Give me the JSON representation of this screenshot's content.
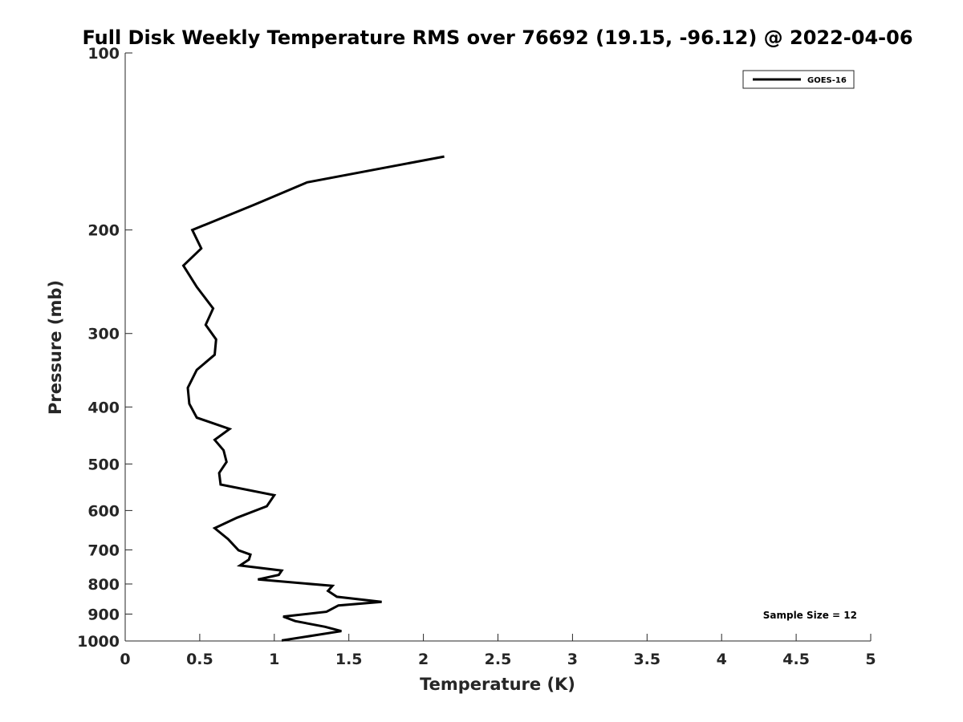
{
  "chart_data": {
    "type": "line",
    "title": "Full Disk Weekly Temperature RMS over 76692 (19.15, -96.12) @ 2022-04-06",
    "xlabel": "Temperature (K)",
    "ylabel": "Pressure (mb)",
    "xlim": [
      0,
      5
    ],
    "ylim": [
      100,
      1000
    ],
    "y_scale": "log",
    "y_reversed": true,
    "x_ticks": [
      "0",
      "0.5",
      "1",
      "1.5",
      "2",
      "2.5",
      "3",
      "3.5",
      "4",
      "4.5",
      "5"
    ],
    "y_ticks": [
      "100",
      "200",
      "300",
      "400",
      "500",
      "600",
      "700",
      "800",
      "900",
      "1000"
    ],
    "grid": false,
    "legend_position": "top-right",
    "series": [
      {
        "name": "GOES-16",
        "color": "#000000",
        "points": [
          [
            2.14,
            150
          ],
          [
            1.22,
            166
          ],
          [
            0.87,
            181
          ],
          [
            0.45,
            200
          ],
          [
            0.51,
            215
          ],
          [
            0.39,
            230
          ],
          [
            0.48,
            250
          ],
          [
            0.59,
            272
          ],
          [
            0.54,
            290
          ],
          [
            0.61,
            307
          ],
          [
            0.6,
            326
          ],
          [
            0.48,
            346
          ],
          [
            0.42,
            371
          ],
          [
            0.43,
            395
          ],
          [
            0.48,
            417
          ],
          [
            0.7,
            436
          ],
          [
            0.6,
            455
          ],
          [
            0.66,
            474
          ],
          [
            0.68,
            496
          ],
          [
            0.63,
            518
          ],
          [
            0.64,
            542
          ],
          [
            1.0,
            565
          ],
          [
            0.95,
            590
          ],
          [
            0.75,
            617
          ],
          [
            0.6,
            643
          ],
          [
            0.69,
            671
          ],
          [
            0.76,
            701
          ],
          [
            0.84,
            713
          ],
          [
            0.83,
            727
          ],
          [
            0.77,
            744
          ],
          [
            1.05,
            759
          ],
          [
            1.03,
            772
          ],
          [
            0.89,
            786
          ],
          [
            1.39,
            806
          ],
          [
            1.36,
            822
          ],
          [
            1.42,
            841
          ],
          [
            1.72,
            858
          ],
          [
            1.43,
            870
          ],
          [
            1.35,
            892
          ],
          [
            1.06,
            909
          ],
          [
            1.14,
            925
          ],
          [
            1.34,
            946
          ],
          [
            1.45,
            962
          ],
          [
            1.05,
            998
          ]
        ]
      }
    ],
    "annotation": "Sample Size = 12"
  }
}
